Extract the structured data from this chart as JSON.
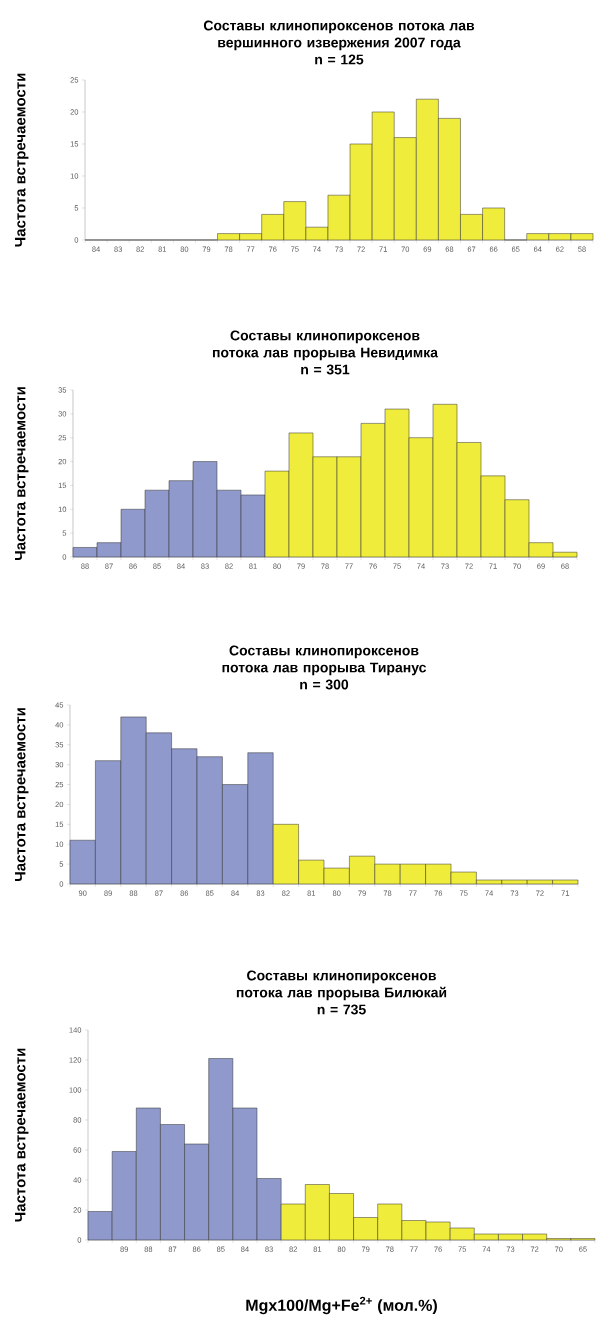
{
  "chart_data": [
    {
      "type": "bar",
      "title": "Составы клинопироксенов потока лав вершинного извержения 2007 года",
      "subtitle": "n = 125",
      "ylabel": "Частота встречаемости",
      "categories": [
        "84",
        "83",
        "82",
        "81",
        "80",
        "79",
        "78",
        "77",
        "76",
        "75",
        "74",
        "73",
        "72",
        "71",
        "70",
        "69",
        "68",
        "67",
        "66",
        "65",
        "64",
        "62",
        "58"
      ],
      "values": [
        0,
        0,
        0,
        0,
        0,
        0,
        1,
        1,
        4,
        6,
        2,
        7,
        15,
        20,
        16,
        22,
        19,
        4,
        5,
        0,
        1,
        1,
        1
      ],
      "colors": [
        "#f0ec3c",
        "#f0ec3c",
        "#f0ec3c",
        "#f0ec3c",
        "#f0ec3c",
        "#f0ec3c",
        "#f0ec3c",
        "#f0ec3c",
        "#f0ec3c",
        "#f0ec3c",
        "#f0ec3c",
        "#f0ec3c",
        "#f0ec3c",
        "#f0ec3c",
        "#f0ec3c",
        "#f0ec3c",
        "#f0ec3c",
        "#f0ec3c",
        "#f0ec3c",
        "#f0ec3c",
        "#f0ec3c",
        "#f0ec3c",
        "#f0ec3c"
      ],
      "ylim": [
        0,
        25
      ],
      "yticks": [
        0,
        5,
        10,
        15,
        20,
        25
      ]
    },
    {
      "type": "bar",
      "title": "Составы клинопироксенов потока лав прорыва Невидимка",
      "subtitle": "n = 351",
      "ylabel": "Частота встречаемости",
      "categories": [
        "88",
        "87",
        "86",
        "85",
        "84",
        "83",
        "82",
        "81",
        "80",
        "79",
        "78",
        "77",
        "76",
        "75",
        "74",
        "73",
        "72",
        "71",
        "70",
        "69",
        "68"
      ],
      "values": [
        2,
        3,
        10,
        14,
        16,
        20,
        14,
        13,
        18,
        26,
        21,
        21,
        28,
        31,
        25,
        32,
        24,
        17,
        12,
        3,
        1
      ],
      "colors": [
        "#8f99cb",
        "#8f99cb",
        "#8f99cb",
        "#8f99cb",
        "#8f99cb",
        "#8f99cb",
        "#8f99cb",
        "#8f99cb",
        "#f0ec3c",
        "#f0ec3c",
        "#f0ec3c",
        "#f0ec3c",
        "#f0ec3c",
        "#f0ec3c",
        "#f0ec3c",
        "#f0ec3c",
        "#f0ec3c",
        "#f0ec3c",
        "#f0ec3c",
        "#f0ec3c",
        "#f0ec3c"
      ],
      "ylim": [
        0,
        35
      ],
      "yticks": [
        0,
        5,
        10,
        15,
        20,
        25,
        30,
        35
      ]
    },
    {
      "type": "bar",
      "title": "Составы клинопироксенов потока лав прорыва Тиранус",
      "subtitle": "n = 300",
      "ylabel": "Частота встречаемости",
      "categories": [
        "90",
        "89",
        "88",
        "87",
        "86",
        "85",
        "84",
        "83",
        "82",
        "81",
        "80",
        "79",
        "78",
        "77",
        "76",
        "75",
        "74",
        "73",
        "72",
        "71"
      ],
      "values": [
        11,
        31,
        42,
        38,
        34,
        32,
        25,
        33,
        15,
        6,
        4,
        7,
        5,
        5,
        5,
        3,
        1,
        1,
        1,
        1
      ],
      "colors": [
        "#8f99cb",
        "#8f99cb",
        "#8f99cb",
        "#8f99cb",
        "#8f99cb",
        "#8f99cb",
        "#8f99cb",
        "#8f99cb",
        "#f0ec3c",
        "#f0ec3c",
        "#f0ec3c",
        "#f0ec3c",
        "#f0ec3c",
        "#f0ec3c",
        "#f0ec3c",
        "#f0ec3c",
        "#f0ec3c",
        "#f0ec3c",
        "#f0ec3c",
        "#f0ec3c"
      ],
      "ylim": [
        0,
        45
      ],
      "yticks": [
        0,
        5,
        10,
        15,
        20,
        25,
        30,
        35,
        40,
        45
      ]
    },
    {
      "type": "bar",
      "title": "Составы клинопироксенов потока лав прорыва Билюкай",
      "subtitle": "n = 735",
      "ylabel": "Частота встречаемости",
      "xlabel": "Mgx100/Mg+Fe$^{2+}$ (мол.%)",
      "categories": [
        null,
        "89",
        "88",
        "87",
        "86",
        "85",
        "84",
        "83",
        "82",
        "81",
        "80",
        "79",
        "78",
        "77",
        "76",
        "75",
        "74",
        "73",
        "72",
        "70",
        "65"
      ],
      "values": [
        19,
        59,
        88,
        77,
        64,
        121,
        88,
        41,
        24,
        37,
        31,
        15,
        24,
        13,
        12,
        8,
        4,
        4,
        4,
        1,
        1
      ],
      "colors": [
        "#8f99cb",
        "#8f99cb",
        "#8f99cb",
        "#8f99cb",
        "#8f99cb",
        "#8f99cb",
        "#8f99cb",
        "#8f99cb",
        "#f0ec3c",
        "#f0ec3c",
        "#f0ec3c",
        "#f0ec3c",
        "#f0ec3c",
        "#f0ec3c",
        "#f0ec3c",
        "#f0ec3c",
        "#f0ec3c",
        "#f0ec3c",
        "#f0ec3c",
        "#f0ec3c",
        "#f0ec3c"
      ],
      "ylim": [
        0,
        140
      ],
      "yticks": [
        0,
        20,
        40,
        60,
        80,
        100,
        120,
        140
      ]
    }
  ]
}
